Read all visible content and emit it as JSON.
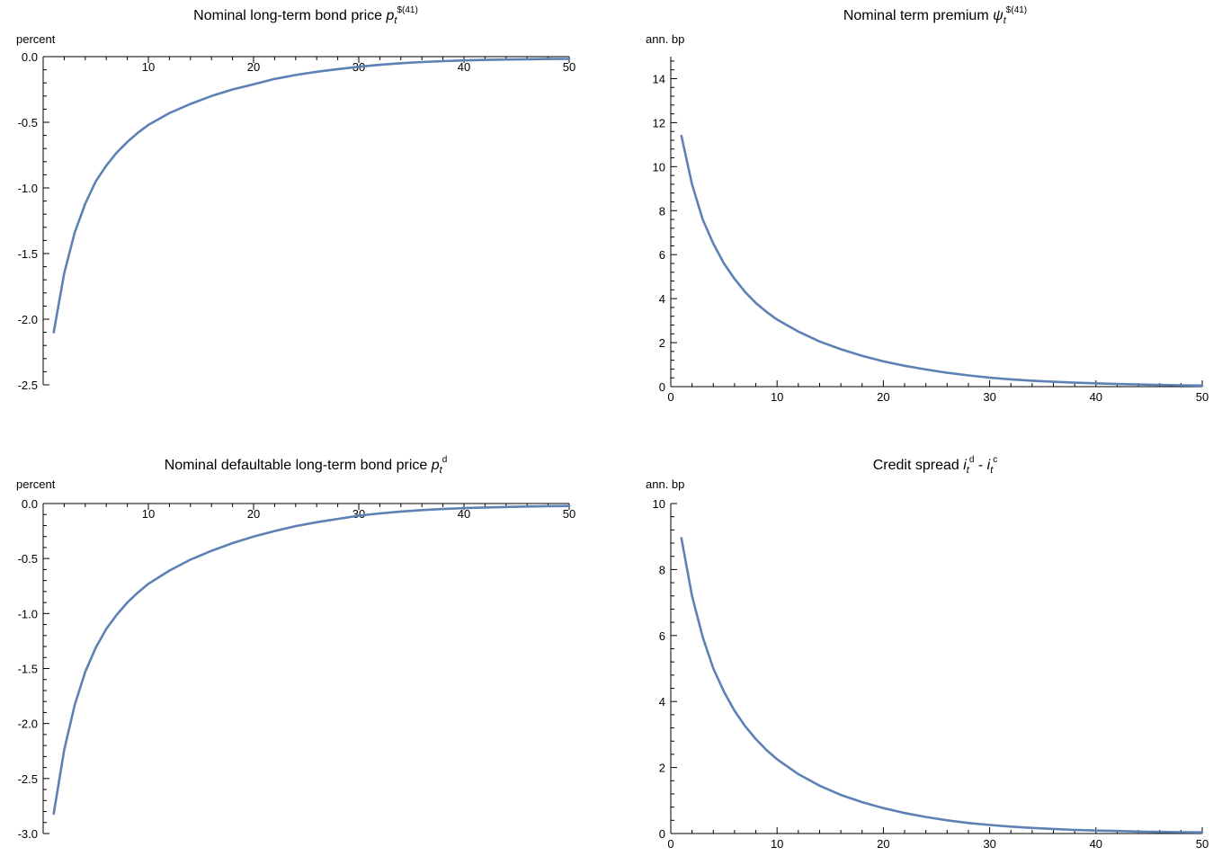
{
  "chart_data": [
    {
      "type": "line",
      "title": "Nominal long-term bond price ",
      "title_var": "p",
      "title_sub": "t",
      "title_sup": "$(41)",
      "ylabel": "percent",
      "xlabel": "",
      "xlim": [
        0,
        50
      ],
      "ylim": [
        -2.5,
        0.0
      ],
      "xticks": [
        10,
        20,
        30,
        40,
        50
      ],
      "yticks": [
        0.0,
        -0.5,
        -1.0,
        -1.5,
        -2.0,
        -2.5
      ],
      "ytick_labels": [
        "0.0",
        "-0.5",
        "-1.0",
        "-1.5",
        "-2.0",
        "-2.5"
      ],
      "grid": false,
      "color": "#5E81B5",
      "series": [
        {
          "x": [
            1,
            2,
            3,
            4,
            5,
            6,
            7,
            8,
            9,
            10,
            12,
            14,
            16,
            18,
            20,
            22,
            24,
            26,
            28,
            30,
            32,
            34,
            36,
            38,
            40,
            42,
            44,
            46,
            48,
            50
          ],
          "y": [
            -2.1,
            -1.65,
            -1.34,
            -1.12,
            -0.95,
            -0.83,
            -0.73,
            -0.65,
            -0.58,
            -0.52,
            -0.43,
            -0.36,
            -0.3,
            -0.25,
            -0.21,
            -0.17,
            -0.14,
            -0.115,
            -0.095,
            -0.077,
            -0.062,
            -0.05,
            -0.041,
            -0.034,
            -0.029,
            -0.025,
            -0.022,
            -0.02,
            -0.018,
            -0.017
          ]
        }
      ]
    },
    {
      "type": "line",
      "title": "Nominal term premium ",
      "title_var": "ψ",
      "title_sub": "t",
      "title_sup": "$(41)",
      "ylabel": "ann. bp",
      "xlabel": "",
      "xlim": [
        0,
        50
      ],
      "ylim": [
        0,
        15
      ],
      "xticks": [
        0,
        10,
        20,
        30,
        40,
        50
      ],
      "yticks": [
        0,
        2,
        4,
        6,
        8,
        10,
        12,
        14
      ],
      "ytick_labels": [
        "0",
        "2",
        "4",
        "6",
        "8",
        "10",
        "12",
        "14"
      ],
      "grid": false,
      "color": "#5E81B5",
      "series": [
        {
          "x": [
            1,
            2,
            3,
            4,
            5,
            6,
            7,
            8,
            9,
            10,
            12,
            14,
            16,
            18,
            20,
            22,
            24,
            26,
            28,
            30,
            32,
            34,
            36,
            38,
            40,
            42,
            44,
            46,
            48,
            50
          ],
          "y": [
            11.4,
            9.2,
            7.6,
            6.5,
            5.6,
            4.9,
            4.3,
            3.8,
            3.4,
            3.05,
            2.5,
            2.05,
            1.7,
            1.4,
            1.15,
            0.95,
            0.78,
            0.63,
            0.51,
            0.41,
            0.33,
            0.27,
            0.22,
            0.18,
            0.15,
            0.12,
            0.1,
            0.08,
            0.06,
            0.05
          ]
        }
      ]
    },
    {
      "type": "line",
      "title": "Nominal defaultable long-term bond price ",
      "title_var": "p",
      "title_sub": "t",
      "title_sup": "d",
      "ylabel": "percent",
      "xlabel": "",
      "xlim": [
        0,
        50
      ],
      "ylim": [
        -3.0,
        0.0
      ],
      "xticks": [
        10,
        20,
        30,
        40,
        50
      ],
      "yticks": [
        0.0,
        -0.5,
        -1.0,
        -1.5,
        -2.0,
        -2.5,
        -3.0
      ],
      "ytick_labels": [
        "0.0",
        "-0.5",
        "-1.0",
        "-1.5",
        "-2.0",
        "-2.5",
        "-3.0"
      ],
      "grid": false,
      "color": "#5E81B5",
      "series": [
        {
          "x": [
            1,
            2,
            3,
            4,
            5,
            6,
            7,
            8,
            9,
            10,
            12,
            14,
            16,
            18,
            20,
            22,
            24,
            26,
            28,
            30,
            32,
            34,
            36,
            38,
            40,
            42,
            44,
            46,
            48,
            50
          ],
          "y": [
            -2.82,
            -2.24,
            -1.83,
            -1.53,
            -1.31,
            -1.14,
            -1.01,
            -0.9,
            -0.81,
            -0.73,
            -0.61,
            -0.51,
            -0.43,
            -0.36,
            -0.3,
            -0.25,
            -0.205,
            -0.17,
            -0.14,
            -0.11,
            -0.09,
            -0.073,
            -0.06,
            -0.05,
            -0.042,
            -0.036,
            -0.031,
            -0.027,
            -0.024,
            -0.022
          ]
        }
      ]
    },
    {
      "type": "line",
      "title": "Credit spread ",
      "title_var": "i",
      "title_sub": "t",
      "title_sup": "d",
      "title_minus": " - ",
      "title_var2": "i",
      "title_sub2": "t",
      "title_sup2": "c",
      "ylabel": "ann. bp",
      "xlabel": "",
      "xlim": [
        0,
        50
      ],
      "ylim": [
        0,
        10
      ],
      "xticks": [
        0,
        10,
        20,
        30,
        40,
        50
      ],
      "yticks": [
        0,
        2,
        4,
        6,
        8,
        10
      ],
      "ytick_labels": [
        "0",
        "2",
        "4",
        "6",
        "8",
        "10"
      ],
      "grid": false,
      "color": "#5E81B5",
      "series": [
        {
          "x": [
            1,
            2,
            3,
            4,
            5,
            6,
            7,
            8,
            9,
            10,
            12,
            14,
            16,
            18,
            20,
            22,
            24,
            26,
            28,
            30,
            32,
            34,
            36,
            38,
            40,
            42,
            44,
            46,
            48,
            50
          ],
          "y": [
            8.95,
            7.2,
            5.95,
            5.0,
            4.3,
            3.72,
            3.25,
            2.86,
            2.53,
            2.25,
            1.8,
            1.45,
            1.17,
            0.95,
            0.77,
            0.62,
            0.5,
            0.4,
            0.32,
            0.26,
            0.21,
            0.17,
            0.14,
            0.11,
            0.09,
            0.075,
            0.06,
            0.05,
            0.04,
            0.035
          ]
        }
      ]
    }
  ]
}
